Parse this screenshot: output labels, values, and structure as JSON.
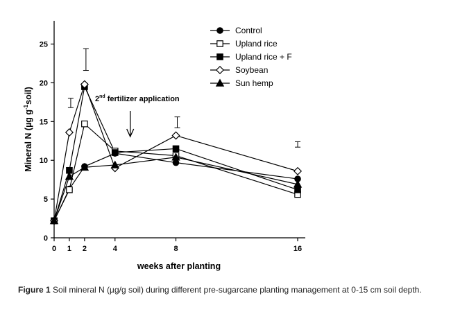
{
  "figure": {
    "caption_label": "Figure 1",
    "caption_text": " Soil mineral N (µg/g soil) during different pre-sugarcane planting management at 0-15 cm soil depth."
  },
  "chart_data": {
    "type": "line",
    "xlabel": "weeks after planting",
    "ylabel_main": "Mineral N (µg g",
    "ylabel_sup": "-1",
    "ylabel_end": "soil)",
    "x": [
      0,
      1,
      2,
      4,
      8,
      16
    ],
    "x_ticks": [
      "0",
      "1",
      "2",
      "4",
      "8",
      "16"
    ],
    "y_ticks": [
      "0",
      "5",
      "10",
      "15",
      "20",
      "25"
    ],
    "ylim": [
      0,
      28
    ],
    "xlim": [
      0,
      16.5
    ],
    "grid": false,
    "legend_position": "top-right",
    "series": [
      {
        "name": "Control",
        "marker": "circle-filled",
        "values": [
          2.2,
          6.3,
          9.2,
          10.9,
          9.7,
          7.6
        ]
      },
      {
        "name": "Upland rice",
        "marker": "square-open",
        "values": [
          2.2,
          6.2,
          14.7,
          11.2,
          10.6,
          5.6
        ]
      },
      {
        "name": "Upland rice + F",
        "marker": "square-filled",
        "values": [
          2.2,
          8.7,
          19.5,
          11.0,
          11.5,
          6.2
        ]
      },
      {
        "name": "Soybean",
        "marker": "diamond-open",
        "values": [
          2.2,
          13.6,
          19.8,
          9.0,
          13.2,
          8.6
        ]
      },
      {
        "name": "Sun hemp",
        "marker": "triangle-filled",
        "values": [
          2.2,
          7.9,
          9.1,
          9.4,
          10.4,
          6.9
        ]
      }
    ],
    "error_bars": [
      {
        "x": 1,
        "low": 16.8,
        "high": 18.0
      },
      {
        "x": 2,
        "low": 21.6,
        "high": 24.4
      },
      {
        "x": 8,
        "low": 14.2,
        "high": 15.6
      },
      {
        "x": 16,
        "low": 11.7,
        "high": 12.4
      }
    ],
    "annotation": {
      "sup": "nd",
      "pre": "2",
      "post": " fertilizer application",
      "x": 5
    }
  }
}
